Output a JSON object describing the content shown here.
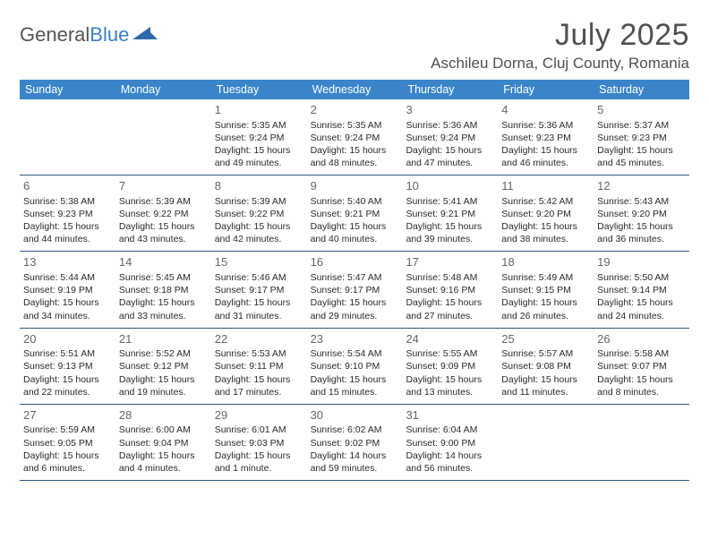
{
  "brand": {
    "part1": "General",
    "part2": "Blue"
  },
  "title": "July 2025",
  "location": "Aschileu Dorna, Cluj County, Romania",
  "colors": {
    "header_bg": "#3a85c9",
    "border": "#31597f",
    "text": "#2a2a2a",
    "title_text": "#505050"
  },
  "weekdays": [
    "Sunday",
    "Monday",
    "Tuesday",
    "Wednesday",
    "Thursday",
    "Friday",
    "Saturday"
  ],
  "weeks": [
    [
      null,
      null,
      {
        "n": "1",
        "sr": "Sunrise: 5:35 AM",
        "ss": "Sunset: 9:24 PM",
        "dl": "Daylight: 15 hours and 49 minutes."
      },
      {
        "n": "2",
        "sr": "Sunrise: 5:35 AM",
        "ss": "Sunset: 9:24 PM",
        "dl": "Daylight: 15 hours and 48 minutes."
      },
      {
        "n": "3",
        "sr": "Sunrise: 5:36 AM",
        "ss": "Sunset: 9:24 PM",
        "dl": "Daylight: 15 hours and 47 minutes."
      },
      {
        "n": "4",
        "sr": "Sunrise: 5:36 AM",
        "ss": "Sunset: 9:23 PM",
        "dl": "Daylight: 15 hours and 46 minutes."
      },
      {
        "n": "5",
        "sr": "Sunrise: 5:37 AM",
        "ss": "Sunset: 9:23 PM",
        "dl": "Daylight: 15 hours and 45 minutes."
      }
    ],
    [
      {
        "n": "6",
        "sr": "Sunrise: 5:38 AM",
        "ss": "Sunset: 9:23 PM",
        "dl": "Daylight: 15 hours and 44 minutes."
      },
      {
        "n": "7",
        "sr": "Sunrise: 5:39 AM",
        "ss": "Sunset: 9:22 PM",
        "dl": "Daylight: 15 hours and 43 minutes."
      },
      {
        "n": "8",
        "sr": "Sunrise: 5:39 AM",
        "ss": "Sunset: 9:22 PM",
        "dl": "Daylight: 15 hours and 42 minutes."
      },
      {
        "n": "9",
        "sr": "Sunrise: 5:40 AM",
        "ss": "Sunset: 9:21 PM",
        "dl": "Daylight: 15 hours and 40 minutes."
      },
      {
        "n": "10",
        "sr": "Sunrise: 5:41 AM",
        "ss": "Sunset: 9:21 PM",
        "dl": "Daylight: 15 hours and 39 minutes."
      },
      {
        "n": "11",
        "sr": "Sunrise: 5:42 AM",
        "ss": "Sunset: 9:20 PM",
        "dl": "Daylight: 15 hours and 38 minutes."
      },
      {
        "n": "12",
        "sr": "Sunrise: 5:43 AM",
        "ss": "Sunset: 9:20 PM",
        "dl": "Daylight: 15 hours and 36 minutes."
      }
    ],
    [
      {
        "n": "13",
        "sr": "Sunrise: 5:44 AM",
        "ss": "Sunset: 9:19 PM",
        "dl": "Daylight: 15 hours and 34 minutes."
      },
      {
        "n": "14",
        "sr": "Sunrise: 5:45 AM",
        "ss": "Sunset: 9:18 PM",
        "dl": "Daylight: 15 hours and 33 minutes."
      },
      {
        "n": "15",
        "sr": "Sunrise: 5:46 AM",
        "ss": "Sunset: 9:17 PM",
        "dl": "Daylight: 15 hours and 31 minutes."
      },
      {
        "n": "16",
        "sr": "Sunrise: 5:47 AM",
        "ss": "Sunset: 9:17 PM",
        "dl": "Daylight: 15 hours and 29 minutes."
      },
      {
        "n": "17",
        "sr": "Sunrise: 5:48 AM",
        "ss": "Sunset: 9:16 PM",
        "dl": "Daylight: 15 hours and 27 minutes."
      },
      {
        "n": "18",
        "sr": "Sunrise: 5:49 AM",
        "ss": "Sunset: 9:15 PM",
        "dl": "Daylight: 15 hours and 26 minutes."
      },
      {
        "n": "19",
        "sr": "Sunrise: 5:50 AM",
        "ss": "Sunset: 9:14 PM",
        "dl": "Daylight: 15 hours and 24 minutes."
      }
    ],
    [
      {
        "n": "20",
        "sr": "Sunrise: 5:51 AM",
        "ss": "Sunset: 9:13 PM",
        "dl": "Daylight: 15 hours and 22 minutes."
      },
      {
        "n": "21",
        "sr": "Sunrise: 5:52 AM",
        "ss": "Sunset: 9:12 PM",
        "dl": "Daylight: 15 hours and 19 minutes."
      },
      {
        "n": "22",
        "sr": "Sunrise: 5:53 AM",
        "ss": "Sunset: 9:11 PM",
        "dl": "Daylight: 15 hours and 17 minutes."
      },
      {
        "n": "23",
        "sr": "Sunrise: 5:54 AM",
        "ss": "Sunset: 9:10 PM",
        "dl": "Daylight: 15 hours and 15 minutes."
      },
      {
        "n": "24",
        "sr": "Sunrise: 5:55 AM",
        "ss": "Sunset: 9:09 PM",
        "dl": "Daylight: 15 hours and 13 minutes."
      },
      {
        "n": "25",
        "sr": "Sunrise: 5:57 AM",
        "ss": "Sunset: 9:08 PM",
        "dl": "Daylight: 15 hours and 11 minutes."
      },
      {
        "n": "26",
        "sr": "Sunrise: 5:58 AM",
        "ss": "Sunset: 9:07 PM",
        "dl": "Daylight: 15 hours and 8 minutes."
      }
    ],
    [
      {
        "n": "27",
        "sr": "Sunrise: 5:59 AM",
        "ss": "Sunset: 9:05 PM",
        "dl": "Daylight: 15 hours and 6 minutes."
      },
      {
        "n": "28",
        "sr": "Sunrise: 6:00 AM",
        "ss": "Sunset: 9:04 PM",
        "dl": "Daylight: 15 hours and 4 minutes."
      },
      {
        "n": "29",
        "sr": "Sunrise: 6:01 AM",
        "ss": "Sunset: 9:03 PM",
        "dl": "Daylight: 15 hours and 1 minute."
      },
      {
        "n": "30",
        "sr": "Sunrise: 6:02 AM",
        "ss": "Sunset: 9:02 PM",
        "dl": "Daylight: 14 hours and 59 minutes."
      },
      {
        "n": "31",
        "sr": "Sunrise: 6:04 AM",
        "ss": "Sunset: 9:00 PM",
        "dl": "Daylight: 14 hours and 56 minutes."
      },
      null,
      null
    ]
  ]
}
